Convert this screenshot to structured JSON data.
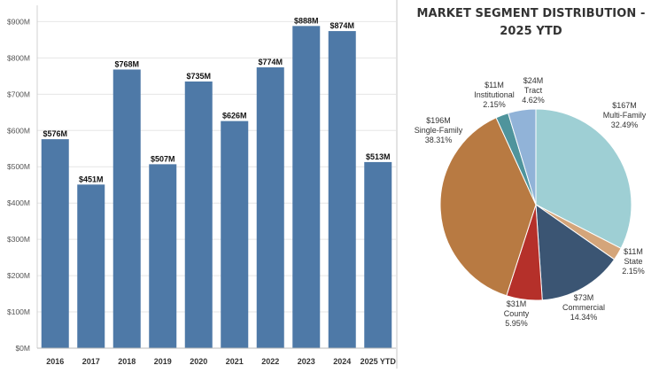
{
  "chart_data": [
    {
      "type": "bar",
      "categories": [
        "2016",
        "2017",
        "2018",
        "2019",
        "2020",
        "2021",
        "2022",
        "2023",
        "2024",
        "2025 YTD"
      ],
      "values": [
        576,
        451,
        768,
        507,
        735,
        626,
        774,
        888,
        874,
        513
      ],
      "data_labels": [
        "$576M",
        "$451M",
        "$768M",
        "$507M",
        "$735M",
        "$626M",
        "$774M",
        "$888M",
        "$874M",
        "$513M"
      ],
      "y_ticks": [
        0,
        100,
        200,
        300,
        400,
        500,
        600,
        700,
        800,
        900
      ],
      "y_tick_labels": [
        "$0M",
        "$100M",
        "$200M",
        "$300M",
        "$400M",
        "$500M",
        "$600M",
        "$700M",
        "$800M",
        "$900M"
      ],
      "ylim": [
        0,
        945
      ],
      "grid": true,
      "color": "#4e79a7"
    },
    {
      "type": "pie",
      "title": "MARKET SEGMENT DISTRIBUTION - 2025 YTD",
      "slices": [
        {
          "name": "Multi-Family",
          "value": 167,
          "value_label": "$167M",
          "percent": "32.49%",
          "color": "#9ecfd4"
        },
        {
          "name": "State",
          "value": 11,
          "value_label": "$11M",
          "percent": "2.15%",
          "color": "#d4a57a"
        },
        {
          "name": "Commercial",
          "value": 73,
          "value_label": "$73M",
          "percent": "14.34%",
          "color": "#3b5573"
        },
        {
          "name": "County",
          "value": 31,
          "value_label": "$31M",
          "percent": "5.95%",
          "color": "#b5302a"
        },
        {
          "name": "Single-Family",
          "value": 196,
          "value_label": "$196M",
          "percent": "38.31%",
          "color": "#b87a42"
        },
        {
          "name": "Institutional",
          "value": 11,
          "value_label": "$11M",
          "percent": "2.15%",
          "color": "#4f949c"
        },
        {
          "name": "Tract",
          "value": 24,
          "value_label": "$24M",
          "percent": "4.62%",
          "color": "#91b3d8"
        }
      ]
    }
  ]
}
